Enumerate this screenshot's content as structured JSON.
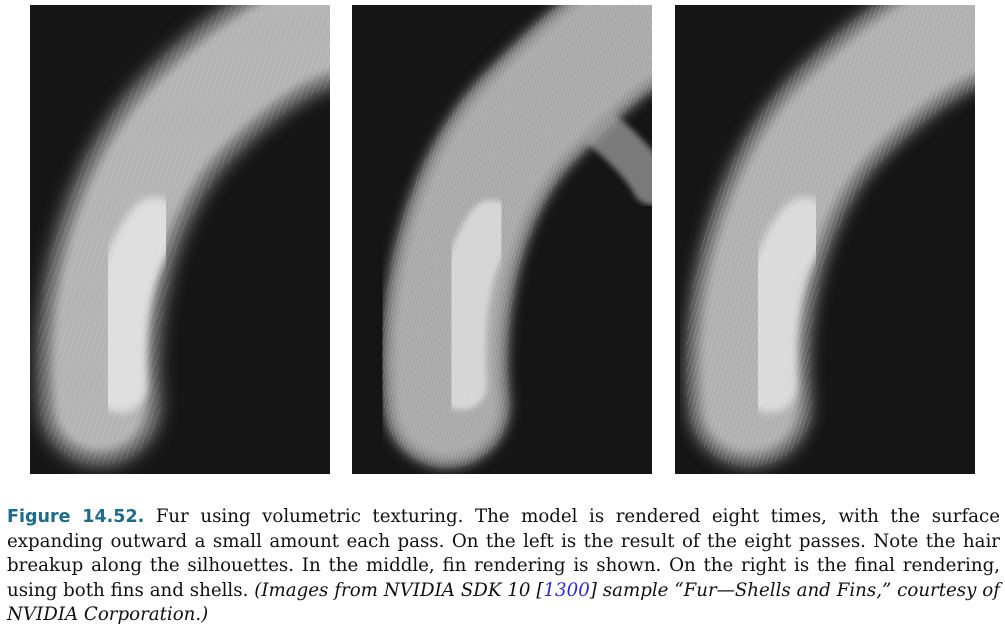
{
  "figure": {
    "label": "Figure 14.52.",
    "text": "Fur using volumetric texturing. The model is rendered eight times, with the surface expanding outward a small amount each pass. On the left is the result of the eight passes. Note the hair breakup along the silhouettes. In the middle, fin rendering is shown. On the right is the final rendering, using both fins and shells.",
    "credit_prefix": "(Images from NVIDIA SDK 10 [",
    "reference": "1300",
    "credit_suffix": "] sample “Fur—Shells and Fins,” courtesy of NVIDIA Corporation.)"
  },
  "panels": [
    {
      "name": "shells-render"
    },
    {
      "name": "fins-render"
    },
    {
      "name": "final-render"
    }
  ]
}
